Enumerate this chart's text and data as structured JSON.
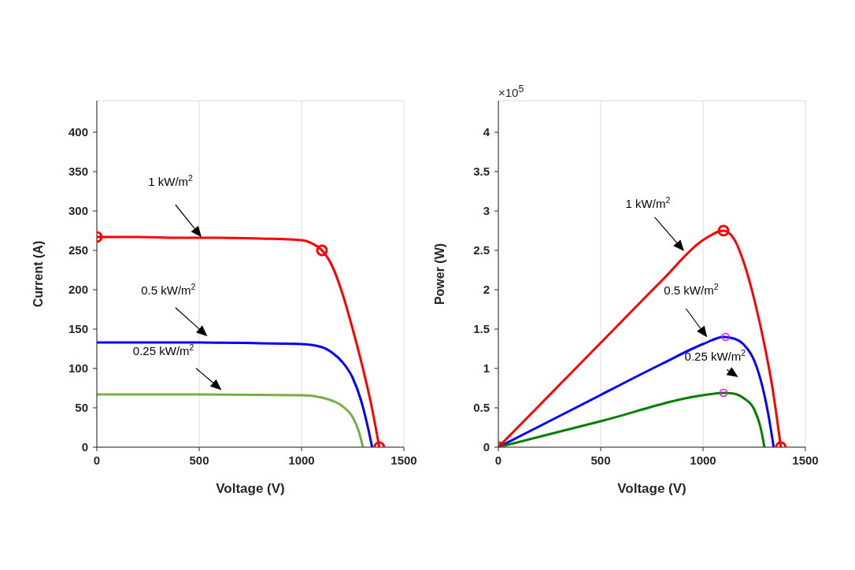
{
  "chart_data": [
    {
      "type": "line",
      "xlabel": "Voltage (V)",
      "ylabel": "Current (A)",
      "xlim": [
        0,
        1500
      ],
      "xticks": [
        0,
        500,
        1000,
        1500
      ],
      "ylim": [
        0,
        440
      ],
      "yticks": [
        0,
        50,
        100,
        150,
        200,
        250,
        300,
        350,
        400
      ],
      "grid": true,
      "marker": "none",
      "line_style": "solid",
      "series": [
        {
          "color": "#ff0000",
          "x": [
            0,
            200,
            400,
            600,
            800,
            1000,
            1050,
            1100,
            1150,
            1200,
            1250,
            1300,
            1340,
            1380
          ],
          "values": [
            267,
            267,
            266,
            266,
            265,
            263,
            259,
            250,
            230,
            195,
            150,
            100,
            55,
            0
          ]
        },
        {
          "color": "#0000ff",
          "x": [
            0,
            400,
            800,
            1000,
            1100,
            1150,
            1200,
            1250,
            1290,
            1320,
            1345
          ],
          "values": [
            133,
            133,
            132,
            131,
            127,
            120,
            108,
            88,
            60,
            30,
            0
          ]
        },
        {
          "color": "#77b041",
          "x": [
            0,
            500,
            1000,
            1100,
            1150,
            1200,
            1250,
            1280,
            1300
          ],
          "values": [
            67,
            67,
            66,
            63,
            59,
            52,
            38,
            20,
            0
          ]
        },
        {
          "type": "scatter",
          "marker": "circle",
          "color": "#ff0000",
          "x": [
            0,
            1100,
            1380
          ],
          "values": [
            267,
            250,
            0
          ]
        }
      ],
      "annotations": [
        "1 kW/m$^{2}$",
        "0.5 kW/m$^{2}$",
        "0.25 kW/m$^{2}$"
      ]
    },
    {
      "type": "line",
      "xlabel": "Voltage (V)",
      "ylabel": "Power (W)",
      "xlim": [
        0,
        1500
      ],
      "xticks": [
        0,
        500,
        1000,
        1500
      ],
      "ylim": [
        0,
        4.4
      ],
      "yticks": [
        0,
        0.5,
        1,
        1.5,
        2,
        2.5,
        3,
        3.5,
        4
      ],
      "grid": true,
      "marker": "none",
      "line_style": "solid",
      "series": [
        {
          "color": "#ff0000",
          "x": [
            0,
            200,
            400,
            600,
            800,
            1000,
            1100,
            1150,
            1200,
            1250,
            1300,
            1340,
            1380
          ],
          "values": [
            0,
            0.53,
            1.06,
            1.59,
            2.12,
            2.63,
            2.75,
            2.65,
            2.34,
            1.88,
            1.3,
            0.74,
            0
          ]
        },
        {
          "color": "#0000ff",
          "x": [
            0,
            400,
            800,
            1000,
            1100,
            1150,
            1200,
            1250,
            1290,
            1320,
            1345
          ],
          "values": [
            0,
            0.53,
            1.06,
            1.31,
            1.4,
            1.38,
            1.3,
            1.1,
            0.77,
            0.4,
            0
          ]
        },
        {
          "color": "#008000",
          "x": [
            0,
            500,
            1000,
            1100,
            1150,
            1200,
            1250,
            1280,
            1300
          ],
          "values": [
            0,
            0.33,
            0.66,
            0.69,
            0.68,
            0.62,
            0.48,
            0.26,
            0
          ]
        },
        {
          "type": "scatter",
          "marker": "circle",
          "color": "#ff0000",
          "x": [
            0,
            1100,
            1380
          ],
          "values": [
            0,
            2.75,
            0
          ]
        },
        {
          "type": "scatter",
          "marker": "circle",
          "color": "#ff00ff",
          "x": [
            1110,
            1100
          ],
          "values": [
            1.4,
            0.69
          ]
        }
      ],
      "annotations": [
        "×10$^{5}$",
        "1 kW/m$^{2}$",
        "0.5 kW/m$^{2}$",
        "0.25 kW/m$^{2}$"
      ]
    }
  ]
}
